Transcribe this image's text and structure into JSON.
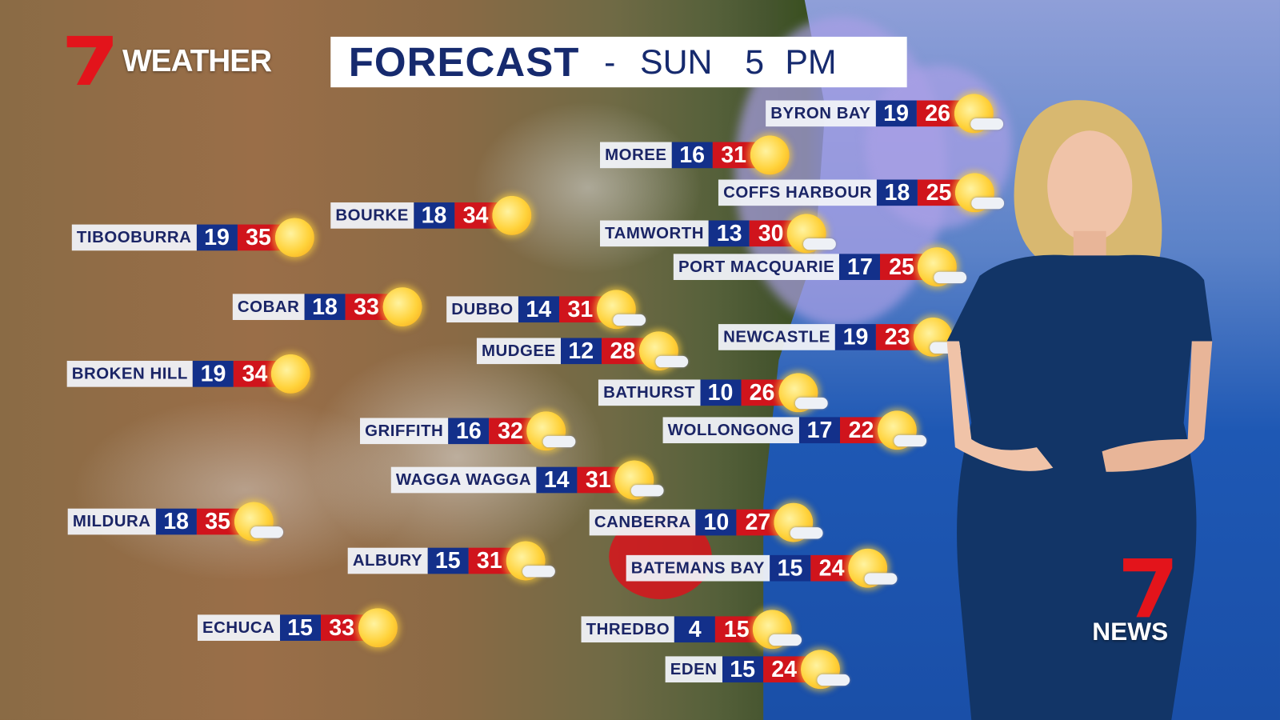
{
  "branding": {
    "weather_logo": "7 WEATHER",
    "news_logo": "7 NEWS",
    "logo_color": "#e3141b"
  },
  "header": {
    "title": "FORECAST",
    "separator": "-",
    "day": "SUN",
    "time": "5 PM"
  },
  "colors": {
    "min_bg": "#13308a",
    "max_bg": "#d0141c",
    "label_bg": "#f0f2f8",
    "label_text": "#1b2566"
  },
  "cities": [
    {
      "name": "BYRON BAY",
      "min": "19",
      "max": "26",
      "icon": "sun-cloud-icon"
    },
    {
      "name": "MOREE",
      "min": "16",
      "max": "31",
      "icon": "sun-icon"
    },
    {
      "name": "COFFS HARBOUR",
      "min": "18",
      "max": "25",
      "icon": "sun-cloud-icon"
    },
    {
      "name": "TAMWORTH",
      "min": "13",
      "max": "30",
      "icon": "sun-cloud-icon"
    },
    {
      "name": "PORT MACQUARIE",
      "min": "17",
      "max": "25",
      "icon": "sun-cloud-icon"
    },
    {
      "name": "NEWCASTLE",
      "min": "19",
      "max": "23",
      "icon": "sun-cloud-icon"
    },
    {
      "name": "BATHURST",
      "min": "10",
      "max": "26",
      "icon": "sun-cloud-icon"
    },
    {
      "name": "WOLLONGONG",
      "min": "17",
      "max": "22",
      "icon": "sun-cloud-icon"
    },
    {
      "name": "CANBERRA",
      "min": "10",
      "max": "27",
      "icon": "sun-cloud-icon"
    },
    {
      "name": "BATEMANS BAY",
      "min": "15",
      "max": "24",
      "icon": "sun-cloud-icon"
    },
    {
      "name": "THREDBO",
      "min": "4",
      "max": "15",
      "icon": "sun-cloud-icon"
    },
    {
      "name": "EDEN",
      "min": "15",
      "max": "24",
      "icon": "sun-cloud-icon"
    },
    {
      "name": "BOURKE",
      "min": "18",
      "max": "34",
      "icon": "sun-icon"
    },
    {
      "name": "TIBOOBURRA",
      "min": "19",
      "max": "35",
      "icon": "sun-icon"
    },
    {
      "name": "COBAR",
      "min": "18",
      "max": "33",
      "icon": "sun-icon"
    },
    {
      "name": "DUBBO",
      "min": "14",
      "max": "31",
      "icon": "sun-cloud-icon"
    },
    {
      "name": "MUDGEE",
      "min": "12",
      "max": "28",
      "icon": "sun-cloud-icon"
    },
    {
      "name": "BROKEN HILL",
      "min": "19",
      "max": "34",
      "icon": "sun-icon"
    },
    {
      "name": "GRIFFITH",
      "min": "16",
      "max": "32",
      "icon": "sun-cloud-icon"
    },
    {
      "name": "WAGGA WAGGA",
      "min": "14",
      "max": "31",
      "icon": "sun-cloud-icon"
    },
    {
      "name": "MILDURA",
      "min": "18",
      "max": "35",
      "icon": "sun-cloud-icon"
    },
    {
      "name": "ALBURY",
      "min": "15",
      "max": "31",
      "icon": "sun-cloud-icon"
    },
    {
      "name": "ECHUCA",
      "min": "15",
      "max": "33",
      "icon": "sun-icon"
    }
  ]
}
